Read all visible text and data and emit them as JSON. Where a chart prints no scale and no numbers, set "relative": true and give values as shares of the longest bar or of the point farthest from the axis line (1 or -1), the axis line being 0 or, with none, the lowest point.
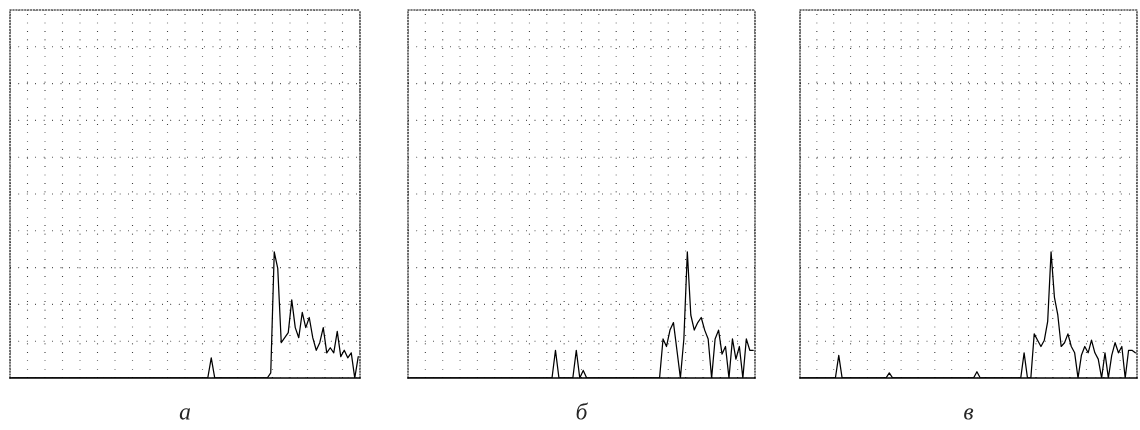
{
  "chart_data": [
    {
      "type": "line",
      "relative": true,
      "xlabel": "а",
      "grid": true,
      "tick_labels": false,
      "categories": [
        null,
        null,
        null,
        null,
        null,
        null,
        null,
        null,
        null,
        null,
        null,
        null,
        null,
        null,
        null,
        null,
        null,
        null,
        null,
        null,
        null,
        null,
        null,
        null,
        null,
        null,
        null,
        null,
        null,
        null,
        null,
        null,
        null,
        null,
        null,
        null,
        null,
        null,
        null,
        null,
        null,
        null,
        null,
        null,
        null,
        null,
        null,
        null,
        null,
        null,
        null,
        null,
        null,
        null,
        null,
        null,
        null,
        null,
        null,
        null,
        null,
        null,
        null,
        null,
        null,
        null,
        null,
        null,
        null,
        null,
        null,
        null,
        null,
        null,
        null,
        null,
        null,
        null,
        null,
        null,
        null,
        null,
        null,
        null,
        null,
        null,
        null,
        null,
        null,
        null,
        null,
        null,
        null,
        null,
        null,
        null,
        null,
        null,
        null,
        null
      ],
      "series": [
        {
          "color": "#000000",
          "values": [
            0,
            0,
            0,
            0,
            0,
            0,
            0,
            0,
            0,
            0,
            0,
            0,
            0,
            0,
            0,
            0,
            0,
            0,
            0,
            0,
            0,
            0,
            0,
            0,
            0,
            0,
            0,
            0,
            0,
            0,
            0,
            0,
            0,
            0,
            0,
            0,
            0,
            0,
            0,
            0,
            0,
            0,
            0,
            0,
            0,
            0,
            0,
            0,
            0,
            0,
            0,
            0,
            0,
            0,
            0,
            0,
            0,
            0.16,
            0,
            0,
            0,
            0,
            0,
            0,
            0,
            0,
            0,
            0,
            0,
            0,
            0,
            0,
            0,
            0,
            0.04,
            1,
            0.87,
            0.28,
            0.32,
            0.36,
            0.62,
            0.4,
            0.32,
            0.52,
            0.4,
            0.48,
            0.32,
            0.22,
            0.28,
            0.4,
            0.2,
            0.24,
            0.2,
            0.37,
            0.17,
            0.22,
            0.16,
            0.2,
            0,
            0.17
          ]
        }
      ]
    },
    {
      "type": "line",
      "relative": true,
      "xlabel": "б",
      "grid": true,
      "tick_labels": false,
      "categories": [
        null,
        null,
        null,
        null,
        null,
        null,
        null,
        null,
        null,
        null,
        null,
        null,
        null,
        null,
        null,
        null,
        null,
        null,
        null,
        null,
        null,
        null,
        null,
        null,
        null,
        null,
        null,
        null,
        null,
        null,
        null,
        null,
        null,
        null,
        null,
        null,
        null,
        null,
        null,
        null,
        null,
        null,
        null,
        null,
        null,
        null,
        null,
        null,
        null,
        null,
        null,
        null,
        null,
        null,
        null,
        null,
        null,
        null,
        null,
        null,
        null,
        null,
        null,
        null,
        null,
        null,
        null,
        null,
        null,
        null,
        null,
        null,
        null,
        null,
        null,
        null,
        null,
        null,
        null,
        null,
        null,
        null,
        null,
        null,
        null,
        null,
        null,
        null,
        null,
        null,
        null,
        null,
        null,
        null,
        null,
        null,
        null,
        null,
        null,
        null
      ],
      "series": [
        {
          "color": "#000000",
          "values": [
            0,
            0,
            0,
            0,
            0,
            0,
            0,
            0,
            0,
            0,
            0,
            0,
            0,
            0,
            0,
            0,
            0,
            0,
            0,
            0,
            0,
            0,
            0,
            0,
            0,
            0,
            0,
            0,
            0,
            0,
            0,
            0,
            0,
            0,
            0,
            0,
            0,
            0,
            0,
            0,
            0,
            0,
            0.22,
            0,
            0,
            0,
            0,
            0,
            0.22,
            0,
            0.06,
            0,
            0,
            0,
            0,
            0,
            0,
            0,
            0,
            0,
            0,
            0,
            0,
            0,
            0,
            0,
            0,
            0,
            0,
            0,
            0,
            0,
            0,
            0.31,
            0.25,
            0.38,
            0.44,
            0.22,
            0,
            0.31,
            1,
            0.5,
            0.38,
            0.44,
            0.48,
            0.38,
            0.31,
            0,
            0.31,
            0.38,
            0.19,
            0.25,
            0,
            0.31,
            0.15,
            0.25,
            0,
            0.31,
            0.22,
            0.22
          ]
        }
      ]
    },
    {
      "type": "line",
      "relative": true,
      "xlabel": "в",
      "grid": true,
      "tick_labels": false,
      "categories": [
        null,
        null,
        null,
        null,
        null,
        null,
        null,
        null,
        null,
        null,
        null,
        null,
        null,
        null,
        null,
        null,
        null,
        null,
        null,
        null,
        null,
        null,
        null,
        null,
        null,
        null,
        null,
        null,
        null,
        null,
        null,
        null,
        null,
        null,
        null,
        null,
        null,
        null,
        null,
        null,
        null,
        null,
        null,
        null,
        null,
        null,
        null,
        null,
        null,
        null,
        null,
        null,
        null,
        null,
        null,
        null,
        null,
        null,
        null,
        null,
        null,
        null,
        null,
        null,
        null,
        null,
        null,
        null,
        null,
        null,
        null,
        null,
        null,
        null,
        null,
        null,
        null,
        null,
        null,
        null,
        null,
        null,
        null,
        null,
        null,
        null,
        null,
        null,
        null,
        null,
        null,
        null,
        null,
        null,
        null,
        null,
        null,
        null,
        null,
        null
      ],
      "series": [
        {
          "color": "#000000",
          "values": [
            0,
            0,
            0,
            0,
            0,
            0,
            0,
            0,
            0,
            0,
            0,
            0.18,
            0,
            0,
            0,
            0,
            0,
            0,
            0,
            0,
            0,
            0,
            0,
            0,
            0,
            0,
            0.04,
            0,
            0,
            0,
            0,
            0,
            0,
            0,
            0,
            0,
            0,
            0,
            0,
            0,
            0,
            0,
            0,
            0,
            0,
            0,
            0,
            0,
            0,
            0,
            0,
            0,
            0.05,
            0,
            0,
            0,
            0,
            0,
            0,
            0,
            0,
            0,
            0,
            0,
            0,
            0,
            0.2,
            0,
            0,
            0.35,
            0.3,
            0.25,
            0.3,
            0.45,
            1,
            0.64,
            0.5,
            0.25,
            0.28,
            0.35,
            0.25,
            0.2,
            0,
            0.18,
            0.25,
            0.2,
            0.3,
            0.2,
            0.15,
            0,
            0.2,
            0,
            0.18,
            0.28,
            0.2,
            0.25,
            0,
            0.22,
            0.22,
            0.2
          ]
        }
      ]
    }
  ]
}
